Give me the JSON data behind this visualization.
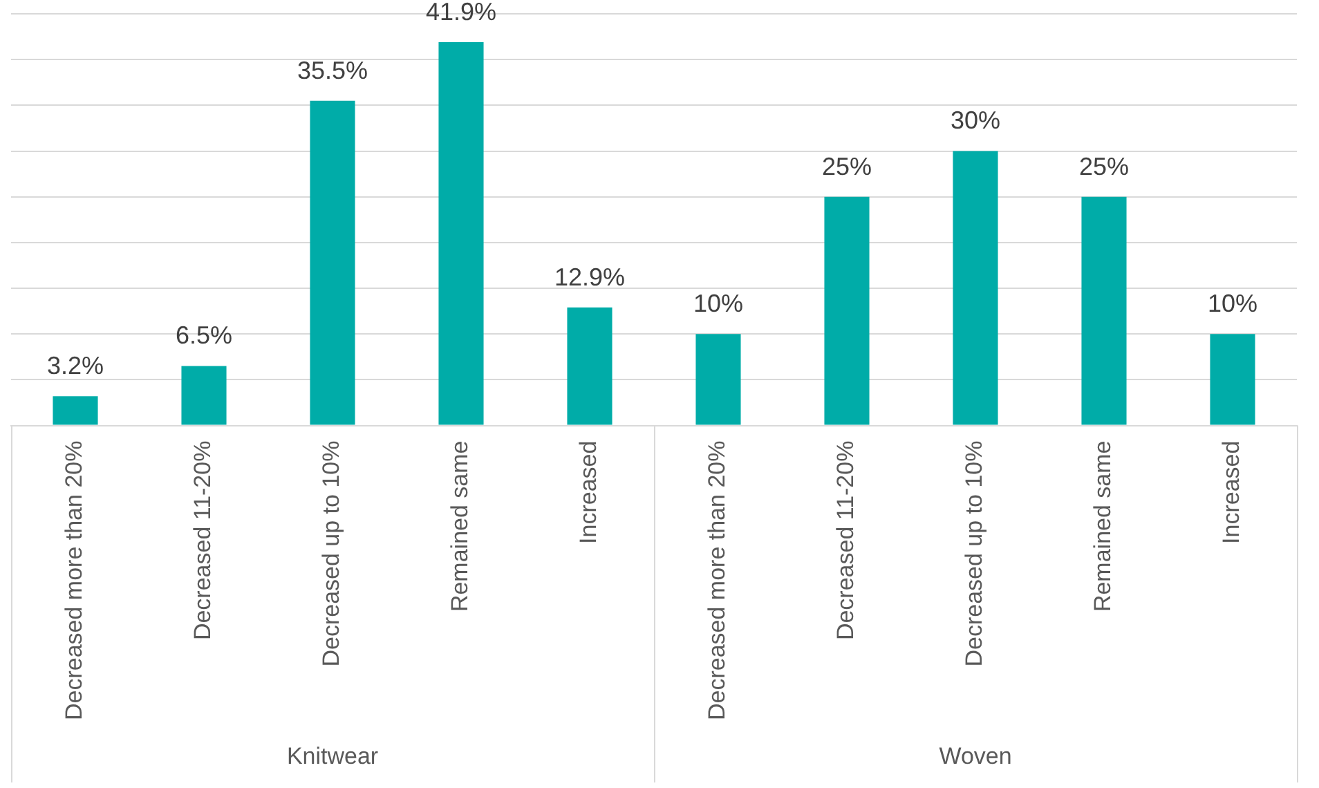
{
  "chart_data": {
    "type": "bar",
    "categories": [
      "Decreased more than 20%",
      "Decreased 11-20%",
      "Decreased up to 10%",
      "Remained same",
      "Increased",
      "Decreased more than 20%",
      "Decreased 11-20%",
      "Decreased up to 10%",
      "Remained same",
      "Increased"
    ],
    "values": [
      3.2,
      6.5,
      35.5,
      41.9,
      12.9,
      10,
      25,
      30,
      25,
      10
    ],
    "value_labels": [
      "3.2%",
      "6.5%",
      "35.5%",
      "41.9%",
      "12.9%",
      "10%",
      "25%",
      "30%",
      "25%",
      "10%"
    ],
    "color": "#00aca8",
    "ylim": [
      0,
      45
    ],
    "yticks": [
      {
        "value": 0,
        "label": null
      },
      {
        "value": 5,
        "label": null
      },
      {
        "value": 10,
        "label": null
      },
      {
        "value": 15,
        "label": null
      },
      {
        "value": 20,
        "label": null
      },
      {
        "value": 25,
        "label": null
      },
      {
        "value": 30,
        "label": null
      },
      {
        "value": 35,
        "label": null
      },
      {
        "value": 40,
        "label": null
      },
      {
        "value": 45,
        "label": null
      }
    ],
    "tick_labels": "x",
    "grid": "y",
    "legend": false,
    "annotations": [
      "Knitwear",
      "Woven"
    ]
  }
}
